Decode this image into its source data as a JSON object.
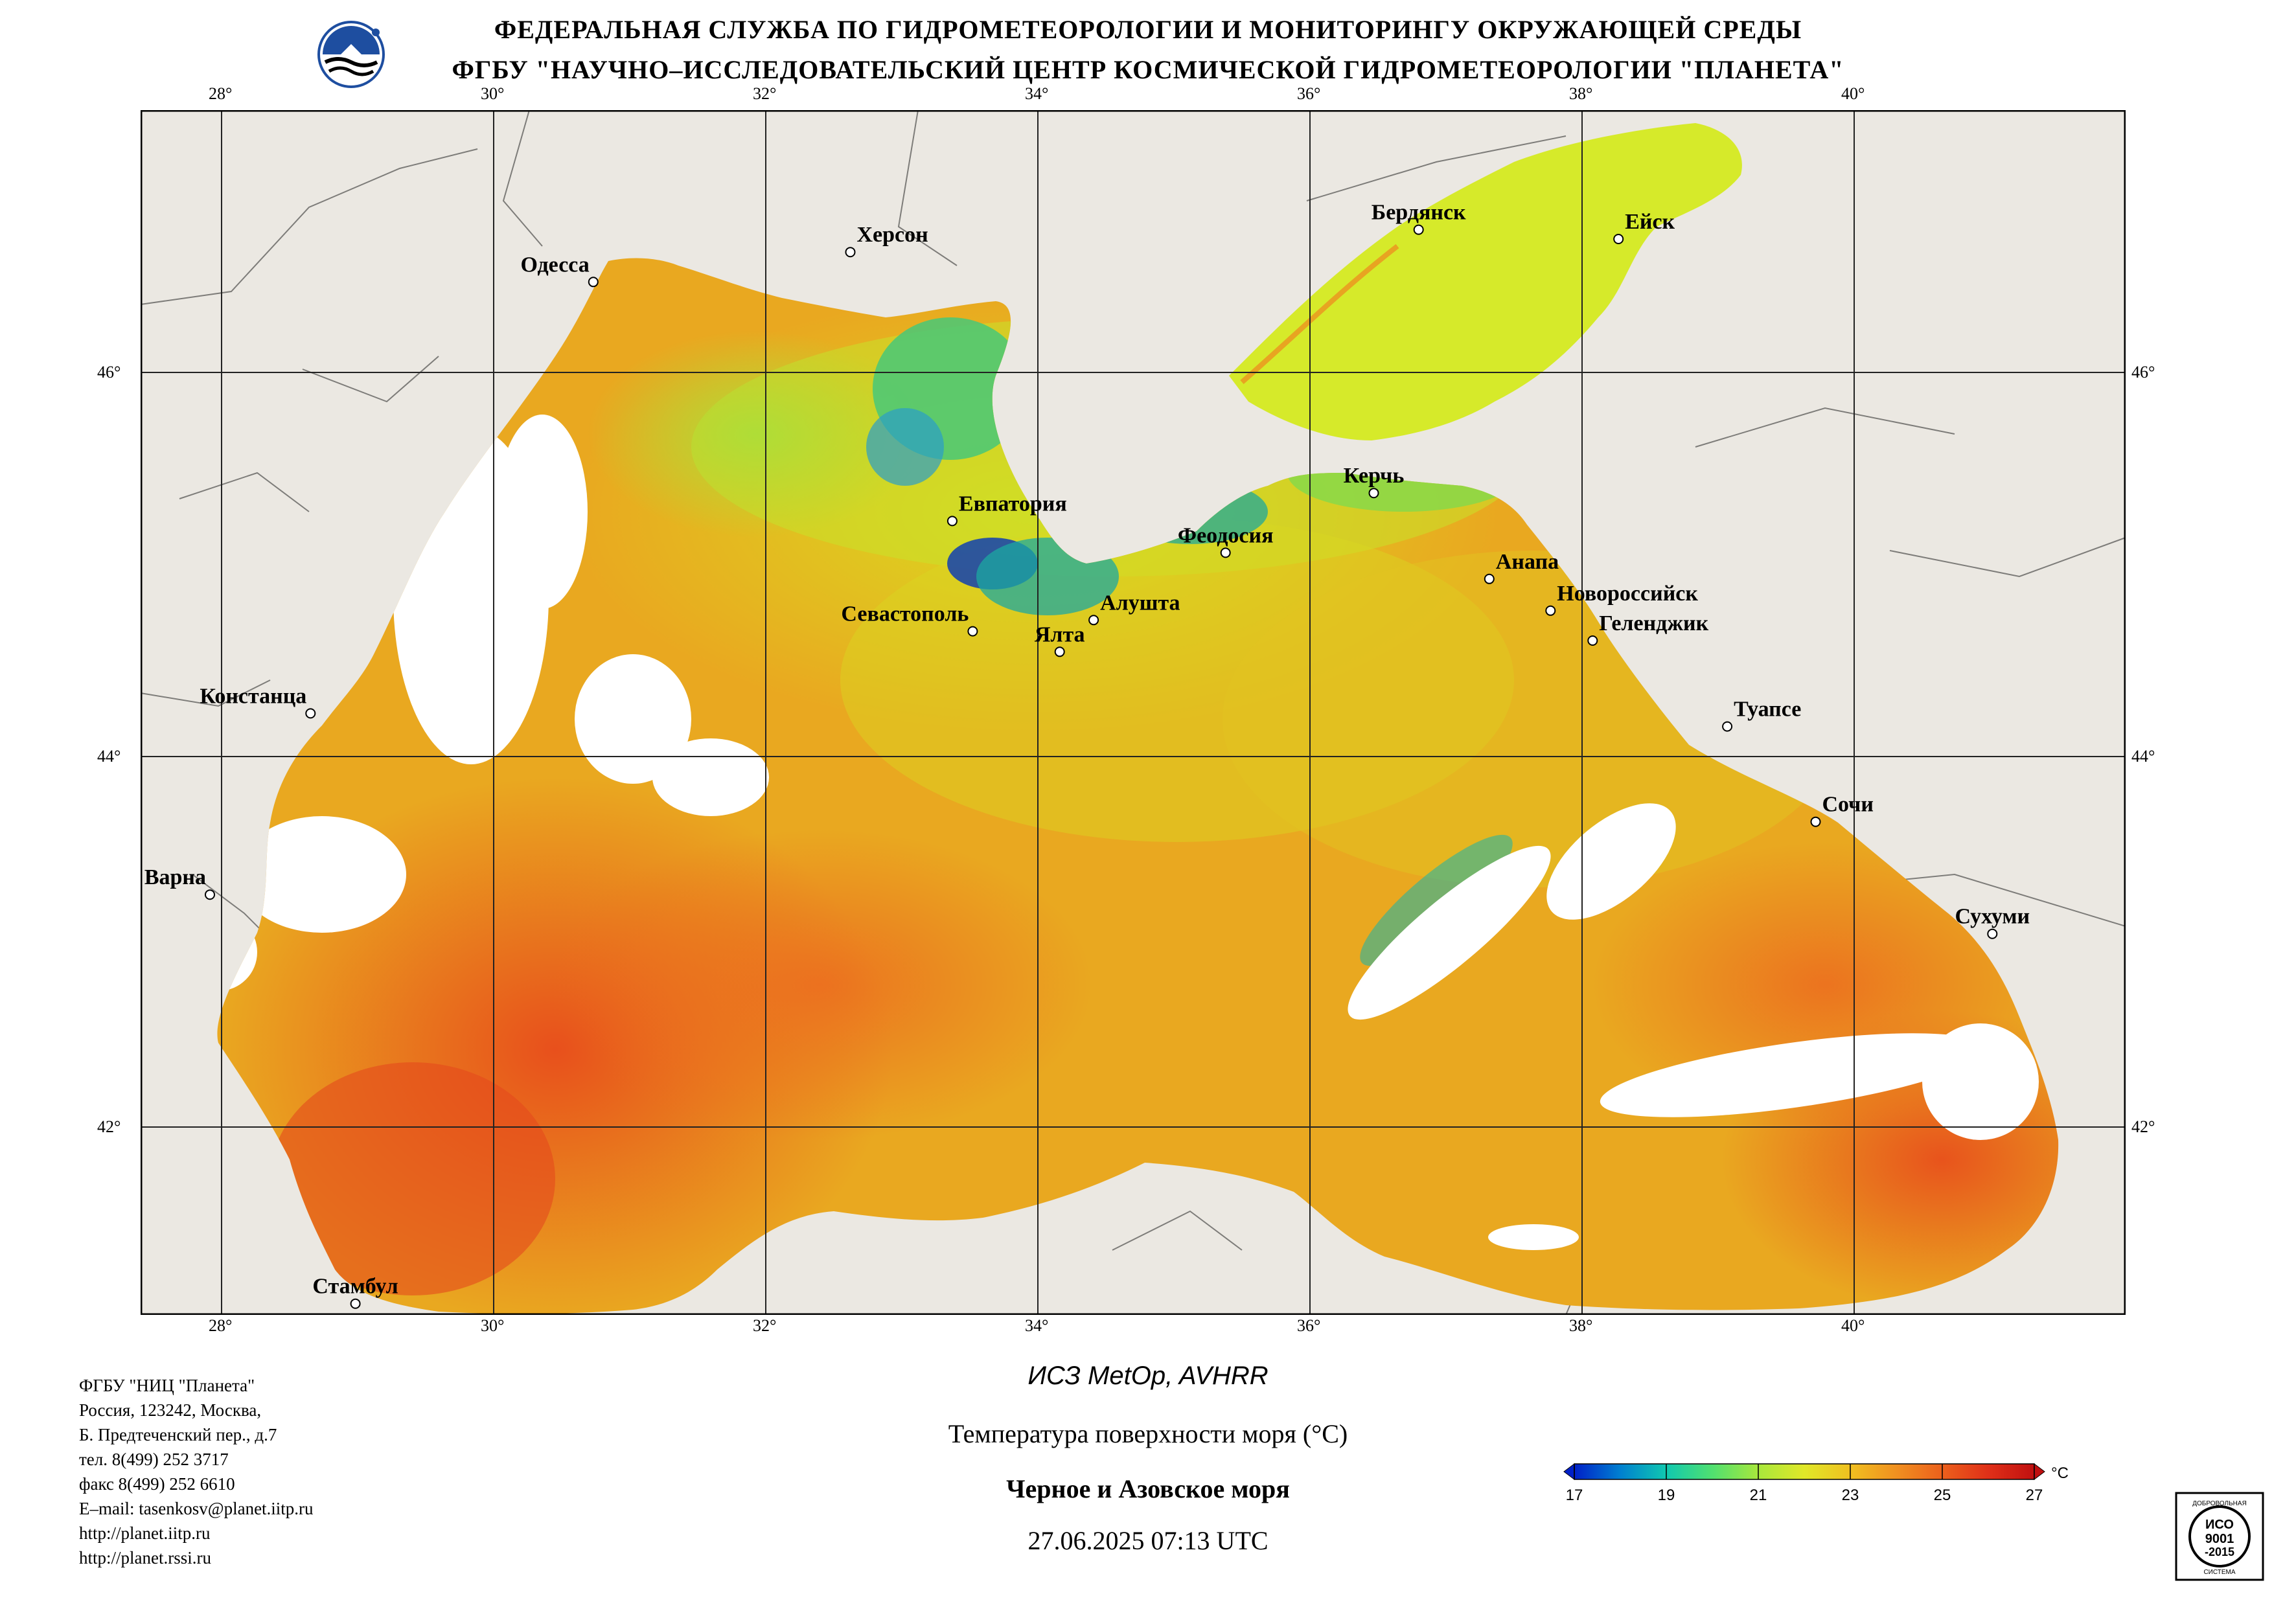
{
  "header": {
    "line1": "ФЕДЕРАЛЬНАЯ СЛУЖБА ПО ГИДРОМЕТЕОРОЛОГИИ И МОНИТОРИНГУ ОКРУЖАЮЩЕЙ СРЕДЫ",
    "line2": "ФГБУ \"НАУЧНО–ИССЛЕДОВАТЕЛЬСКИЙ ЦЕНТР КОСМИЧЕСКОЙ ГИДРОМЕТЕОРОЛОГИИ \"ПЛАНЕТА\""
  },
  "map": {
    "lon_labels": [
      "28°",
      "30°",
      "32°",
      "34°",
      "36°",
      "38°",
      "40°"
    ],
    "lat_labels": [
      "46°",
      "44°",
      "42°"
    ],
    "lon_range": [
      27.4,
      42.0
    ],
    "lat_range": [
      40.95,
      47.4
    ],
    "cities": [
      {
        "name": "Одесса",
        "lon": 30.73,
        "lat": 46.48
      },
      {
        "name": "Херсон",
        "lon": 32.62,
        "lat": 46.64
      },
      {
        "name": "Бердянск",
        "lon": 36.8,
        "lat": 46.76
      },
      {
        "name": "Ейск",
        "lon": 38.27,
        "lat": 46.71
      },
      {
        "name": "Евпатория",
        "lon": 33.37,
        "lat": 45.2
      },
      {
        "name": "Керчь",
        "lon": 36.47,
        "lat": 45.35
      },
      {
        "name": "Феодосия",
        "lon": 35.38,
        "lat": 45.03
      },
      {
        "name": "Анапа",
        "lon": 37.32,
        "lat": 44.89
      },
      {
        "name": "Новороссийск",
        "lon": 37.77,
        "lat": 44.72
      },
      {
        "name": "Геленджик",
        "lon": 38.08,
        "lat": 44.56
      },
      {
        "name": "Севастополь",
        "lon": 33.52,
        "lat": 44.61
      },
      {
        "name": "Алушта",
        "lon": 34.41,
        "lat": 44.67
      },
      {
        "name": "Ялта",
        "lon": 34.16,
        "lat": 44.5
      },
      {
        "name": "Констанца",
        "lon": 28.65,
        "lat": 44.17
      },
      {
        "name": "Туапсе",
        "lon": 39.07,
        "lat": 44.1
      },
      {
        "name": "Сочи",
        "lon": 39.72,
        "lat": 43.59
      },
      {
        "name": "Варна",
        "lon": 27.91,
        "lat": 43.2
      },
      {
        "name": "Сухуми",
        "lon": 41.02,
        "lat": 42.99
      },
      {
        "name": "Стамбул",
        "lon": 28.98,
        "lat": 41.01
      }
    ]
  },
  "info": [
    "ФГБУ \"НИЦ \"Планета\"",
    "Россия, 123242, Москва,",
    "Б. Предтеченский пер., д.7",
    "тел. 8(499) 252 3717",
    "факс 8(499) 252 6610",
    "E–mail: tasenkosv@planet.iitp.ru",
    "http://planet.iitp.ru",
    "http://planet.rssi.ru"
  ],
  "caption": {
    "satellite": "ИСЗ MetOp, AVHRR",
    "product": "Температура поверхности моря (°C)",
    "region": "Черное и Азовское моря",
    "datetime": "27.06.2025 07:13 UTC"
  },
  "colorbar": {
    "ticks": [
      "17",
      "19",
      "21",
      "23",
      "25",
      "27"
    ],
    "unit": "°C",
    "min": 17,
    "max": 27
  },
  "cert": {
    "top": "ДОБРОВОЛЬНАЯ",
    "l1": "ИСО",
    "l2": "9001",
    "l3": "-2015",
    "bottom": "СИСТЕМА"
  }
}
